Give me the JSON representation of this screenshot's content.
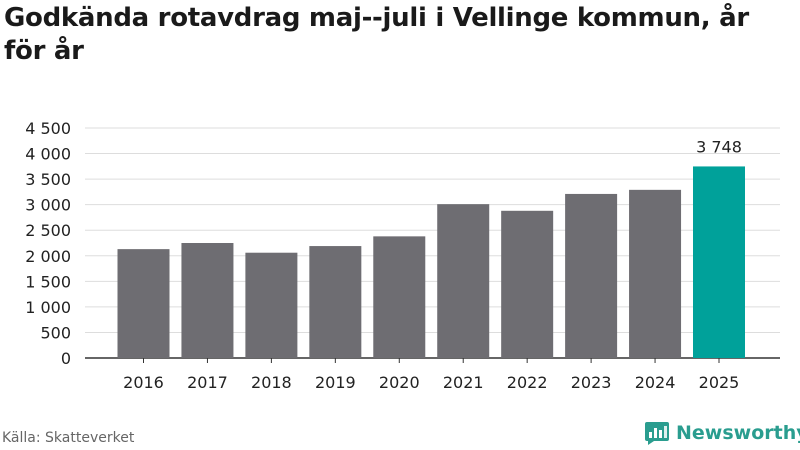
{
  "title": "Godkända rotavdrag maj--juli i Vellinge kommun, år för år",
  "source": "Källa: Skatteverket",
  "brand": {
    "name": "Newsworthy",
    "icon": "newsworthy-logo-icon"
  },
  "colors": {
    "bar": "#6e6d72",
    "highlight": "#00a19a",
    "grid": "#dddddd",
    "axis": "#333333",
    "brand": "#2a9d8f"
  },
  "chart_data": {
    "type": "bar",
    "title": "Godkända rotavdrag maj--juli i Vellinge kommun, år för år",
    "xlabel": "",
    "ylabel": "",
    "categories": [
      "2016",
      "2017",
      "2018",
      "2019",
      "2020",
      "2021",
      "2022",
      "2023",
      "2024",
      "2025"
    ],
    "values": [
      2130,
      2250,
      2060,
      2190,
      2380,
      3010,
      2880,
      3210,
      3290,
      3748
    ],
    "highlight_index": 9,
    "data_labels": [
      {
        "index": 9,
        "text": "3 748"
      }
    ],
    "ylim": [
      0,
      4500
    ],
    "yticks": [
      0,
      500,
      1000,
      1500,
      2000,
      2500,
      3000,
      3500,
      4000,
      4500
    ],
    "ytick_labels": [
      "0",
      "500",
      "1 000",
      "1 500",
      "2 000",
      "2 500",
      "3 000",
      "3 500",
      "4 000",
      "4 500"
    ],
    "grid": true,
    "legend": "none"
  }
}
